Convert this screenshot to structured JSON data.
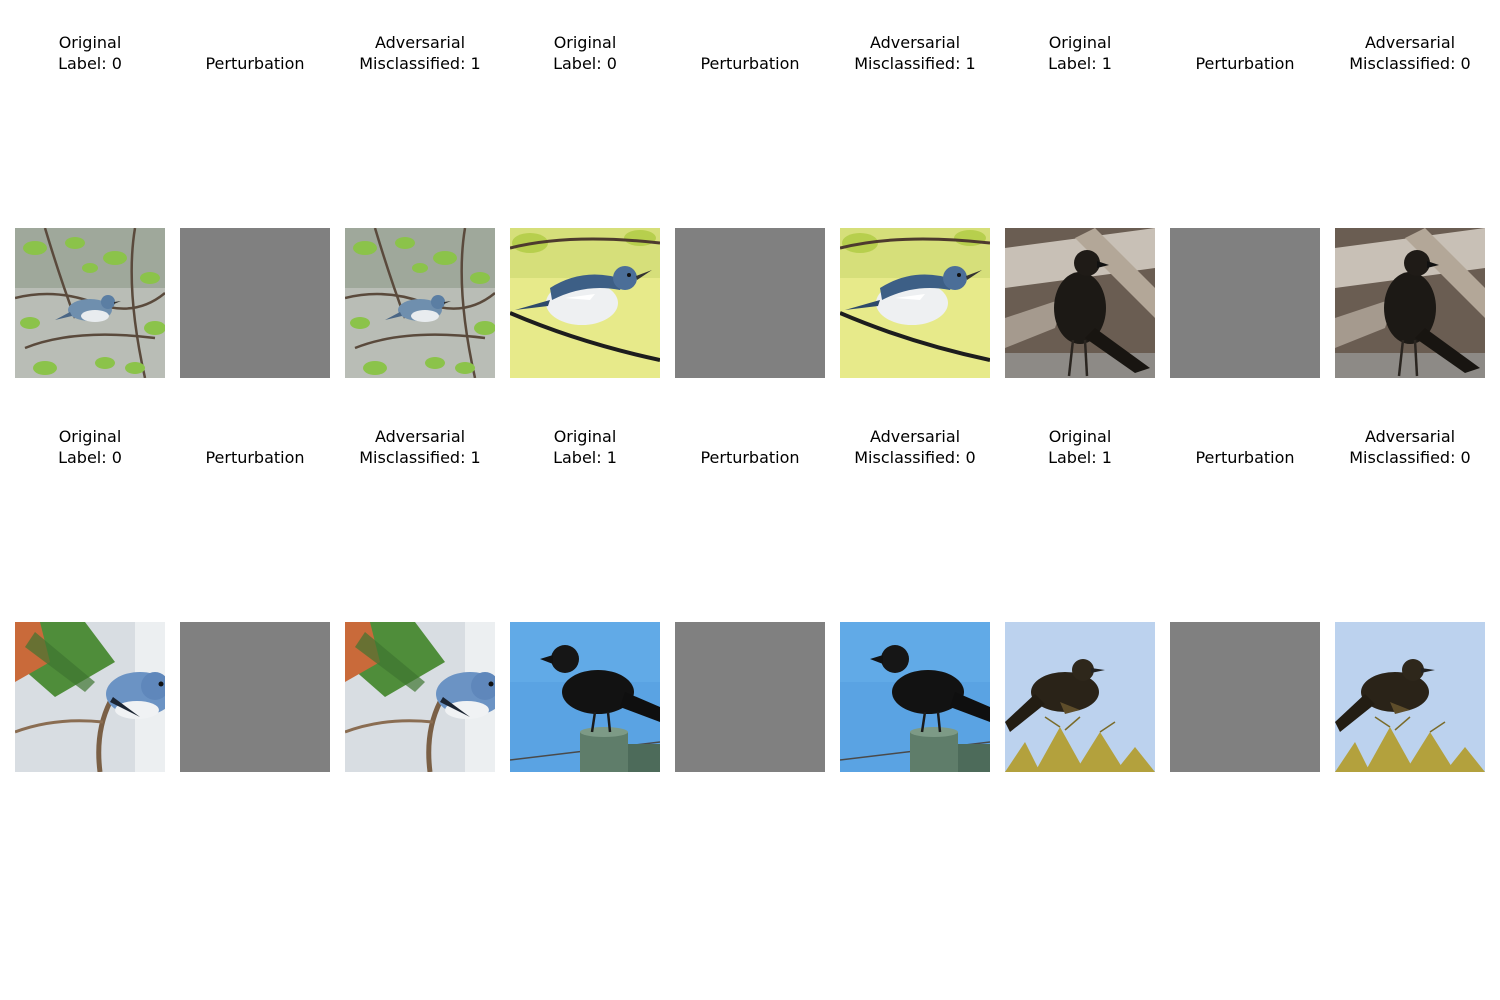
{
  "figure": {
    "rows": [
      {
        "panels": [
          {
            "title_line1": "Original",
            "title_line2": "Label: 0",
            "kind": "original",
            "scene": "warbler-branches"
          },
          {
            "title_line1": "Perturbation",
            "title_line2": "",
            "kind": "perturbation",
            "scene": "gray"
          },
          {
            "title_line1": "Adversarial",
            "title_line2": "Misclassified: 1",
            "kind": "adversarial",
            "scene": "warbler-branches"
          },
          {
            "title_line1": "Original",
            "title_line2": "Label: 0",
            "kind": "original",
            "scene": "warbler-yellow"
          },
          {
            "title_line1": "Perturbation",
            "title_line2": "",
            "kind": "perturbation",
            "scene": "gray"
          },
          {
            "title_line1": "Adversarial",
            "title_line2": "Misclassified: 1",
            "kind": "adversarial",
            "scene": "warbler-yellow"
          },
          {
            "title_line1": "Original",
            "title_line2": "Label: 1",
            "kind": "original",
            "scene": "crow-driftwood"
          },
          {
            "title_line1": "Perturbation",
            "title_line2": "",
            "kind": "perturbation",
            "scene": "gray"
          },
          {
            "title_line1": "Adversarial",
            "title_line2": "Misclassified: 0",
            "kind": "adversarial",
            "scene": "crow-driftwood"
          }
        ]
      },
      {
        "panels": [
          {
            "title_line1": "Original",
            "title_line2": "Label: 0",
            "kind": "original",
            "scene": "warbler-leaf"
          },
          {
            "title_line1": "Perturbation",
            "title_line2": "",
            "kind": "perturbation",
            "scene": "gray"
          },
          {
            "title_line1": "Adversarial",
            "title_line2": "Misclassified: 1",
            "kind": "adversarial",
            "scene": "warbler-leaf"
          },
          {
            "title_line1": "Original",
            "title_line2": "Label: 1",
            "kind": "original",
            "scene": "crow-post"
          },
          {
            "title_line1": "Perturbation",
            "title_line2": "",
            "kind": "perturbation",
            "scene": "gray"
          },
          {
            "title_line1": "Adversarial",
            "title_line2": "Misclassified: 0",
            "kind": "adversarial",
            "scene": "crow-post"
          },
          {
            "title_line1": "Original",
            "title_line2": "Label: 1",
            "kind": "original",
            "scene": "crow-conifer"
          },
          {
            "title_line1": "Perturbation",
            "title_line2": "",
            "kind": "perturbation",
            "scene": "gray"
          },
          {
            "title_line1": "Adversarial",
            "title_line2": "Misclassified: 0",
            "kind": "adversarial",
            "scene": "crow-conifer"
          }
        ]
      }
    ],
    "colors": {
      "perturbation_gray": "#808080",
      "background": "#ffffff",
      "text": "#000000"
    }
  }
}
